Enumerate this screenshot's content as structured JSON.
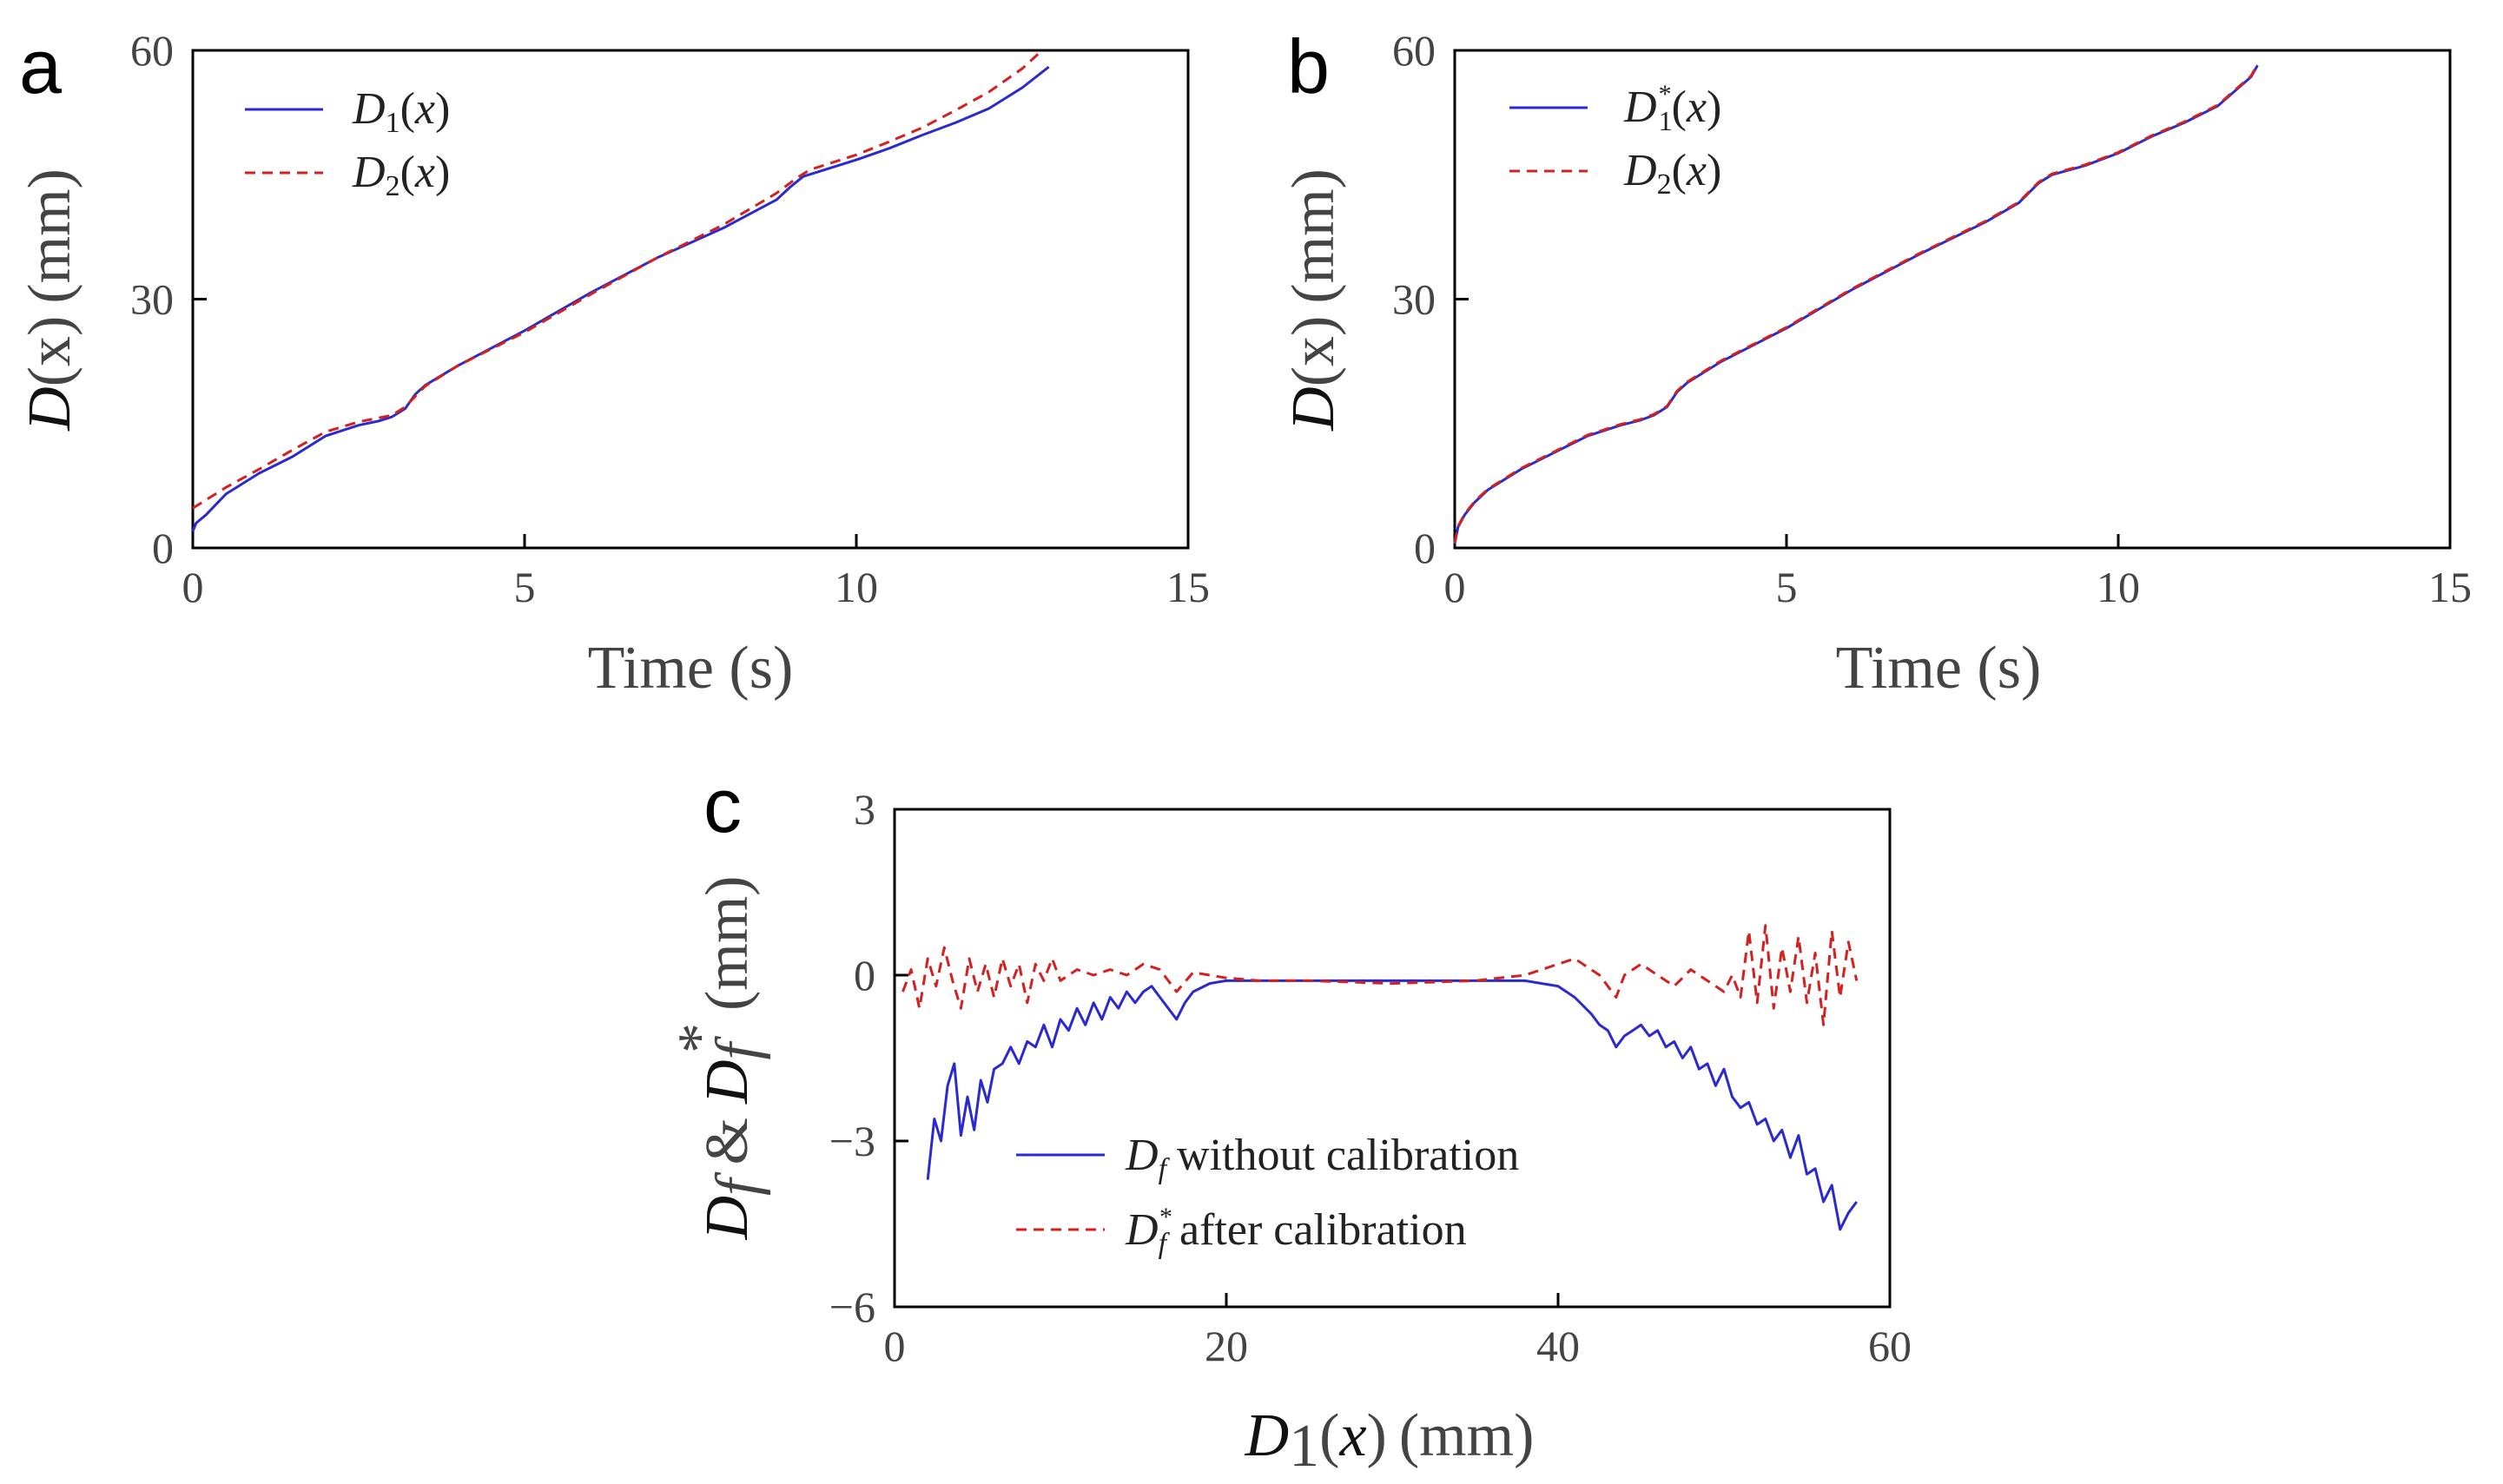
{
  "colors": {
    "solid": "#2a2ad0",
    "dashed": "#d42020"
  },
  "chart_data": [
    {
      "panel": "a",
      "type": "line",
      "xlabel": "Time (s)",
      "ylabel_var": "D",
      "ylabel_arg": "(x)",
      "ylabel_unit": "(mm)",
      "xlim": [
        0,
        15
      ],
      "ylim": [
        0,
        60
      ],
      "xticks": [
        "0",
        "5",
        "10",
        "15"
      ],
      "yticks": [
        "0",
        "30",
        "60"
      ],
      "legend": [
        "D1(x)",
        "D2(x)"
      ],
      "series": [
        {
          "name": "D1(x)",
          "style": "solid",
          "x": [
            0,
            0.05,
            0.2,
            0.5,
            1,
            1.5,
            2,
            2.5,
            2.8,
            3.0,
            3.2,
            3.35,
            3.5,
            4,
            5,
            6,
            7,
            8,
            8.8,
            9.0,
            9.2,
            9.4,
            10,
            10.5,
            11,
            11.5,
            12,
            12.5,
            12.9
          ],
          "y": [
            2,
            3,
            4,
            6.5,
            9,
            11,
            13.5,
            14.8,
            15.3,
            15.8,
            16.8,
            18.5,
            19.6,
            22,
            26.2,
            30.8,
            35,
            38.6,
            42,
            43.5,
            44.8,
            45.3,
            46.8,
            48.2,
            49.8,
            51.3,
            53,
            55.5,
            58
          ]
        },
        {
          "name": "D2(x)",
          "style": "dashed",
          "x": [
            0,
            0.5,
            1,
            1.5,
            2,
            2.5,
            3.0,
            3.2,
            3.5,
            4,
            5,
            6,
            7,
            8,
            8.8,
            9.1,
            9.3,
            10,
            10.5,
            11,
            11.5,
            12,
            12.5,
            12.8
          ],
          "y": [
            4.8,
            7.3,
            9.5,
            11.8,
            14,
            15.2,
            16,
            17,
            19.5,
            22,
            26,
            30.6,
            35,
            39,
            42.8,
            44.6,
            45.6,
            47.4,
            49,
            50.7,
            52.8,
            55,
            57.8,
            60
          ]
        }
      ]
    },
    {
      "panel": "b",
      "type": "line",
      "xlabel": "Time (s)",
      "ylabel_var": "D",
      "ylabel_arg": "(x)",
      "ylabel_unit": "(mm)",
      "xlim": [
        0,
        15
      ],
      "ylim": [
        0,
        60
      ],
      "xticks": [
        "0",
        "5",
        "10",
        "15"
      ],
      "yticks": [
        "0",
        "30",
        "60"
      ],
      "legend": [
        "D1*(x)",
        "D2(x)"
      ],
      "series": [
        {
          "name": "D1*(x)",
          "style": "solid",
          "x": [
            0,
            0.05,
            0.15,
            0.3,
            0.5,
            0.8,
            1,
            1.5,
            2,
            2.5,
            2.8,
            3.0,
            3.2,
            3.35,
            3.5,
            4,
            5,
            6,
            7,
            8,
            8.5,
            8.8,
            9.0,
            9.5,
            10,
            10.5,
            11,
            11.5,
            12,
            12.1
          ],
          "y": [
            0.5,
            2.5,
            4,
            5.5,
            7,
            8.5,
            9.5,
            11.5,
            13.5,
            14.8,
            15.4,
            16,
            17,
            18.8,
            19.9,
            22.4,
            26.5,
            31.2,
            35.4,
            39.3,
            41.6,
            44,
            45,
            46.1,
            47.6,
            49.6,
            51.3,
            53.3,
            56.8,
            58.2
          ]
        },
        {
          "name": "D2(x)",
          "style": "dashed",
          "x": [
            0,
            0.05,
            0.15,
            0.3,
            0.5,
            0.8,
            1,
            1.5,
            2,
            2.5,
            2.8,
            3.0,
            3.2,
            3.35,
            3.5,
            4,
            5,
            6,
            7,
            8,
            8.5,
            8.8,
            9.0,
            9.5,
            10,
            10.5,
            11,
            11.5,
            12,
            12.1
          ],
          "y": [
            0.6,
            2.6,
            4.1,
            5.6,
            7.1,
            8.6,
            9.6,
            11.6,
            13.6,
            14.9,
            15.5,
            16.1,
            17.1,
            18.9,
            20,
            22.5,
            26.6,
            31.3,
            35.5,
            39.4,
            41.7,
            44.1,
            45.1,
            46.2,
            47.7,
            49.7,
            51.4,
            53.4,
            56.9,
            58.3
          ]
        }
      ]
    },
    {
      "panel": "c",
      "type": "line",
      "xlabel_var": "D",
      "xlabel_sub": "1",
      "xlabel_arg": "(x)",
      "xlabel_unit": "(mm)",
      "ylabel_a": "D",
      "ylabel_sub": "f",
      "ylabel_amp": "&",
      "ylabel_star": "*",
      "ylabel_unit": "(mm)",
      "xlim": [
        0,
        60
      ],
      "ylim": [
        -6,
        3
      ],
      "xticks": [
        "0",
        "20",
        "40",
        "60"
      ],
      "yticks": [
        "−6",
        "−3",
        "0",
        "3"
      ],
      "legend": [
        "Df without calibration",
        "Df* after calibration"
      ],
      "series": [
        {
          "name": "Df without calibration",
          "style": "solid",
          "x": [
            2,
            2.4,
            2.8,
            3.2,
            3.6,
            4,
            4.4,
            4.8,
            5.2,
            5.6,
            6,
            6.5,
            7,
            7.5,
            8,
            8.5,
            9,
            9.5,
            10,
            10.5,
            11,
            11.5,
            12,
            12.5,
            13,
            13.5,
            14,
            14.5,
            15,
            15.5,
            16,
            16.5,
            17,
            17.5,
            18,
            19,
            20,
            22,
            25,
            30,
            35,
            38,
            40,
            41,
            42,
            42.5,
            43,
            43.5,
            44,
            44.5,
            45,
            45.5,
            46,
            46.5,
            47,
            47.5,
            48,
            48.5,
            49,
            49.5,
            50,
            50.5,
            51,
            51.5,
            52,
            52.5,
            53,
            53.5,
            54,
            54.5,
            55,
            55.5,
            56,
            56.5,
            57,
            57.5,
            58
          ],
          "y": [
            -3.7,
            -2.6,
            -3,
            -2,
            -1.6,
            -2.9,
            -2.2,
            -2.8,
            -1.9,
            -2.3,
            -1.7,
            -1.6,
            -1.3,
            -1.6,
            -1.2,
            -1.3,
            -0.9,
            -1.3,
            -0.8,
            -1.0,
            -0.6,
            -0.9,
            -0.5,
            -0.8,
            -0.4,
            -0.6,
            -0.3,
            -0.5,
            -0.3,
            -0.2,
            -0.4,
            -0.6,
            -0.8,
            -0.5,
            -0.3,
            -0.15,
            -0.1,
            -0.1,
            -0.1,
            -0.1,
            -0.1,
            -0.1,
            -0.2,
            -0.4,
            -0.7,
            -0.9,
            -1.0,
            -1.3,
            -1.1,
            -1.0,
            -0.9,
            -1.1,
            -1.0,
            -1.3,
            -1.2,
            -1.5,
            -1.3,
            -1.7,
            -1.6,
            -2.0,
            -1.7,
            -2.2,
            -2.4,
            -2.3,
            -2.7,
            -2.6,
            -3.0,
            -2.8,
            -3.3,
            -2.9,
            -3.6,
            -3.5,
            -4.1,
            -3.8,
            -4.6,
            -4.3,
            -4.1
          ]
        },
        {
          "name": "Df* after calibration",
          "style": "dashed",
          "x": [
            0.5,
            1,
            1.5,
            2,
            2.5,
            3,
            3.5,
            4,
            4.5,
            5,
            5.5,
            6,
            6.5,
            7,
            7.5,
            8,
            8.5,
            9,
            9.5,
            10,
            11,
            12,
            13,
            14,
            15,
            16,
            16.5,
            17,
            18,
            19,
            20,
            22,
            25,
            30,
            35,
            38,
            40,
            41,
            42,
            42.5,
            43,
            43.5,
            44,
            45,
            46,
            47,
            48,
            49,
            50,
            50.5,
            51,
            51.5,
            52,
            52.5,
            53,
            53.5,
            54,
            54.5,
            55,
            55.5,
            56,
            56.5,
            57,
            57.5,
            58
          ],
          "y": [
            -0.3,
            0.1,
            -0.6,
            0.3,
            -0.2,
            0.5,
            -0.1,
            -0.6,
            0.3,
            -0.3,
            0.2,
            -0.4,
            0.3,
            -0.2,
            0.2,
            -0.5,
            0.2,
            -0.1,
            0.3,
            -0.1,
            0.1,
            0.0,
            0.1,
            0.0,
            0.2,
            0.1,
            -0.1,
            -0.3,
            0.05,
            0.0,
            -0.05,
            -0.1,
            -0.1,
            -0.15,
            -0.1,
            0.0,
            0.2,
            0.3,
            0.1,
            0.0,
            -0.2,
            -0.4,
            0.0,
            0.2,
            0.0,
            -0.2,
            0.1,
            -0.1,
            -0.3,
            0.0,
            -0.4,
            0.8,
            -0.5,
            0.9,
            -0.6,
            0.5,
            -0.3,
            0.7,
            -0.5,
            0.4,
            -0.9,
            0.8,
            -0.4,
            0.6,
            -0.1
          ]
        }
      ]
    }
  ]
}
